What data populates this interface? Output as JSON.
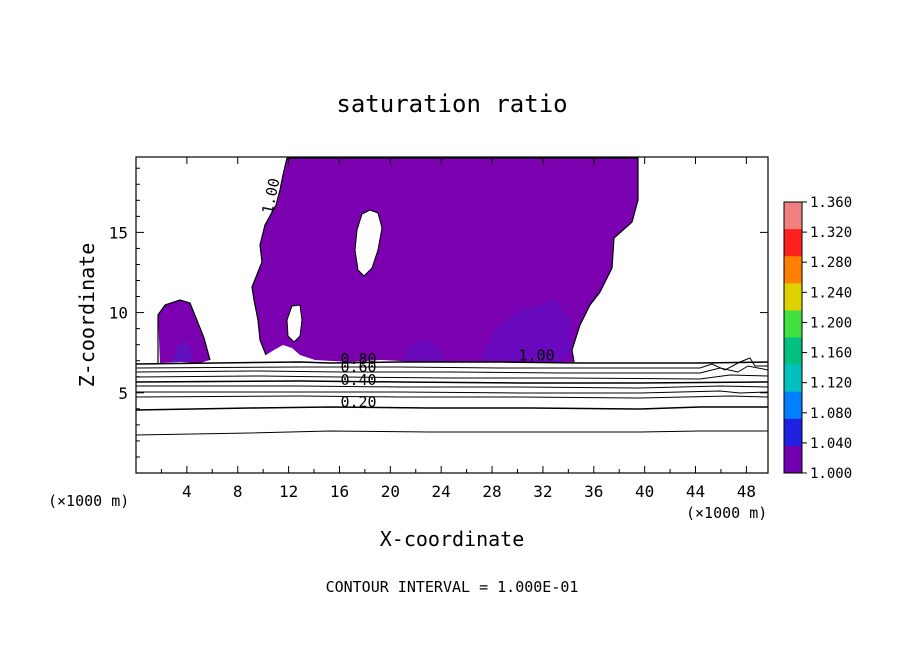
{
  "chart_data": {
    "type": "heatmap",
    "title": "saturation ratio",
    "xlabel": "X-coordinate",
    "ylabel": "Z-coordinate",
    "x_unit": "(×1000 m)",
    "z_unit": "(×1000 m)",
    "xlim": [
      0,
      49.7
    ],
    "ylim": [
      0,
      19.7
    ],
    "x_ticks": [
      4,
      8,
      12,
      16,
      20,
      24,
      28,
      32,
      36,
      40,
      44,
      48
    ],
    "y_ticks": [
      5,
      10,
      15
    ],
    "footer": "CONTOUR INTERVAL = 1.000E-01",
    "colorbar": {
      "labels": [
        "1.360",
        "1.320",
        "1.280",
        "1.240",
        "1.200",
        "1.160",
        "1.120",
        "1.080",
        "1.040",
        "1.000"
      ],
      "colors": [
        "#f08080",
        "#ff2020",
        "#ff8000",
        "#e0d000",
        "#40e040",
        "#00c080",
        "#00c0c0",
        "#0080ff",
        "#2020e0",
        "#7000b0"
      ]
    },
    "contour_labels": [
      {
        "text": "1.00",
        "x": 11.0,
        "z": 17.2
      },
      {
        "text": "1.00",
        "x": 31.5,
        "z": 7.0
      },
      {
        "text": "0.80",
        "x": 17.5,
        "z": 6.8
      },
      {
        "text": "0.60",
        "x": 17.5,
        "z": 6.3
      },
      {
        "text": "0.40",
        "x": 17.5,
        "z": 5.5
      },
      {
        "text": "0.20",
        "x": 17.5,
        "z": 4.1
      }
    ],
    "saturated_fill_color": "#7a00b0"
  }
}
